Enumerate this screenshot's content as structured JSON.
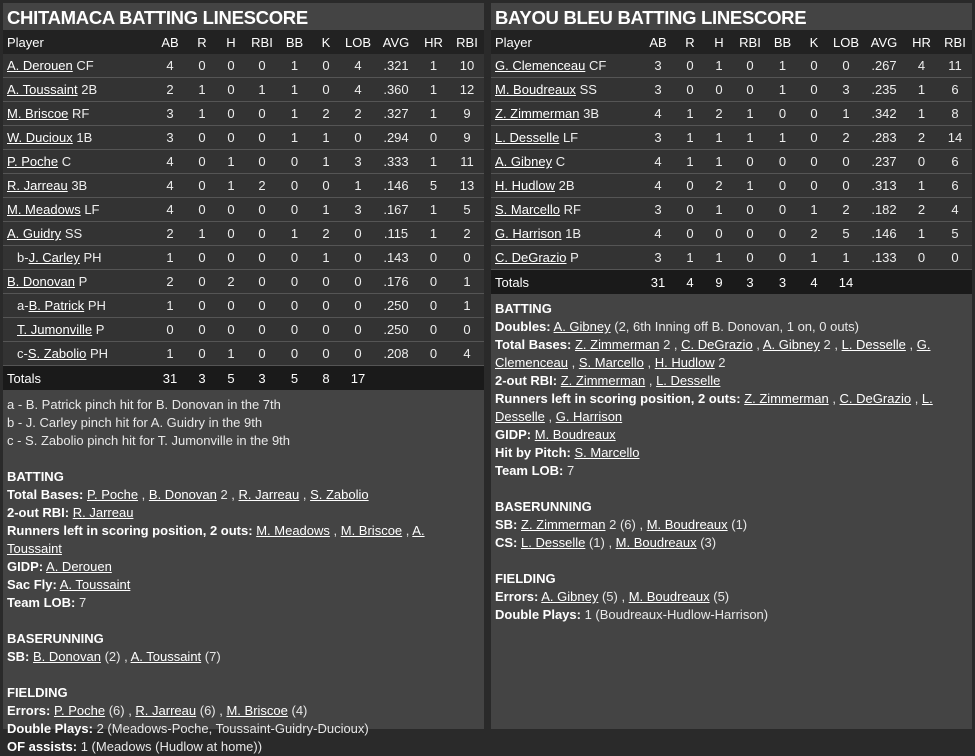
{
  "columns": [
    "Player",
    "AB",
    "R",
    "H",
    "RBI",
    "BB",
    "K",
    "LOB",
    "AVG",
    "HR",
    "RBI"
  ],
  "teams": [
    {
      "title": "CHITAMACA BATTING LINESCORE",
      "rows": [
        {
          "prefix": "",
          "name": "A. Derouen",
          "pos": "CF",
          "sub": false,
          "stats": [
            "4",
            "0",
            "0",
            "0",
            "1",
            "0",
            "4",
            ".321",
            "1",
            "10"
          ]
        },
        {
          "prefix": "",
          "name": "A. Toussaint",
          "pos": "2B",
          "sub": false,
          "stats": [
            "2",
            "1",
            "0",
            "1",
            "1",
            "0",
            "4",
            ".360",
            "1",
            "12"
          ]
        },
        {
          "prefix": "",
          "name": "M. Briscoe",
          "pos": "RF",
          "sub": false,
          "stats": [
            "3",
            "1",
            "0",
            "0",
            "1",
            "2",
            "2",
            ".327",
            "1",
            "9"
          ]
        },
        {
          "prefix": "",
          "name": "W. Ducioux",
          "pos": "1B",
          "sub": false,
          "stats": [
            "3",
            "0",
            "0",
            "0",
            "1",
            "1",
            "0",
            ".294",
            "0",
            "9"
          ]
        },
        {
          "prefix": "",
          "name": "P. Poche",
          "pos": "C",
          "sub": false,
          "stats": [
            "4",
            "0",
            "1",
            "0",
            "0",
            "1",
            "3",
            ".333",
            "1",
            "11"
          ]
        },
        {
          "prefix": "",
          "name": "R. Jarreau",
          "pos": "3B",
          "sub": false,
          "stats": [
            "4",
            "0",
            "1",
            "2",
            "0",
            "0",
            "1",
            ".146",
            "5",
            "13"
          ]
        },
        {
          "prefix": "",
          "name": "M. Meadows",
          "pos": "LF",
          "sub": false,
          "stats": [
            "4",
            "0",
            "0",
            "0",
            "0",
            "1",
            "3",
            ".167",
            "1",
            "5"
          ]
        },
        {
          "prefix": "",
          "name": "A. Guidry",
          "pos": "SS",
          "sub": false,
          "stats": [
            "2",
            "1",
            "0",
            "0",
            "1",
            "2",
            "0",
            ".115",
            "1",
            "2"
          ]
        },
        {
          "prefix": "b-",
          "name": "J. Carley",
          "pos": "PH",
          "sub": true,
          "stats": [
            "1",
            "0",
            "0",
            "0",
            "0",
            "1",
            "0",
            ".143",
            "0",
            "0"
          ]
        },
        {
          "prefix": "",
          "name": "B. Donovan",
          "pos": "P",
          "sub": false,
          "stats": [
            "2",
            "0",
            "2",
            "0",
            "0",
            "0",
            "0",
            ".176",
            "0",
            "1"
          ]
        },
        {
          "prefix": "a-",
          "name": "B. Patrick",
          "pos": "PH",
          "sub": true,
          "stats": [
            "1",
            "0",
            "0",
            "0",
            "0",
            "0",
            "0",
            ".250",
            "0",
            "1"
          ]
        },
        {
          "prefix": "",
          "name": "T. Jumonville",
          "pos": "P",
          "sub": true,
          "stats": [
            "0",
            "0",
            "0",
            "0",
            "0",
            "0",
            "0",
            ".250",
            "0",
            "0"
          ]
        },
        {
          "prefix": "c-",
          "name": "S. Zabolio",
          "pos": "PH",
          "sub": true,
          "stats": [
            "1",
            "0",
            "1",
            "0",
            "0",
            "0",
            "0",
            ".208",
            "0",
            "4"
          ]
        }
      ],
      "totals": {
        "label": "Totals",
        "stats": [
          "31",
          "3",
          "5",
          "3",
          "5",
          "8",
          "17",
          "",
          "",
          ""
        ]
      },
      "footnotes": [
        "a - B. Patrick pinch hit for B. Donovan in the 7th",
        "b - J. Carley pinch hit for A. Guidry in the 9th",
        "c - S. Zabolio pinch hit for T. Jumonville in the 9th"
      ],
      "sections": [
        {
          "heading": "BATTING",
          "items": [
            {
              "label": "Total Bases:",
              "parts": [
                {
                  "link": "P. Poche"
                },
                " , ",
                {
                  "link": "B. Donovan"
                },
                " 2 , ",
                {
                  "link": "R. Jarreau"
                },
                " , ",
                {
                  "link": "S. Zabolio"
                }
              ]
            },
            {
              "label": "2-out RBI:",
              "parts": [
                {
                  "link": "R. Jarreau"
                }
              ]
            },
            {
              "label": "Runners left in scoring position, 2 outs:",
              "parts": [
                {
                  "link": "M. Meadows"
                },
                " , ",
                {
                  "link": "M. Briscoe"
                },
                " , ",
                {
                  "link": "A. Toussaint"
                }
              ]
            },
            {
              "label": "GIDP:",
              "parts": [
                {
                  "link": "A. Derouen"
                }
              ]
            },
            {
              "label": "Sac Fly:",
              "parts": [
                {
                  "link": "A. Toussaint"
                }
              ]
            },
            {
              "label": "Team LOB:",
              "parts": [
                "7"
              ]
            }
          ]
        },
        {
          "heading": "BASERUNNING",
          "items": [
            {
              "label": "SB:",
              "parts": [
                {
                  "link": "B. Donovan"
                },
                " (2) , ",
                {
                  "link": "A. Toussaint"
                },
                " (7)"
              ]
            }
          ]
        },
        {
          "heading": "FIELDING",
          "items": [
            {
              "label": "Errors:",
              "parts": [
                {
                  "link": "P. Poche"
                },
                " (6) , ",
                {
                  "link": "R. Jarreau"
                },
                " (6) , ",
                {
                  "link": "M. Briscoe"
                },
                " (4)"
              ]
            },
            {
              "label": "Double Plays:",
              "parts": [
                "2 (Meadows-Poche, Toussaint-Guidry-Ducioux)"
              ]
            },
            {
              "label": "OF assists:",
              "parts": [
                "1 (Meadows (Hudlow at home))"
              ]
            }
          ]
        }
      ]
    },
    {
      "title": "BAYOU BLEU BATTING LINESCORE",
      "rows": [
        {
          "prefix": "",
          "name": "G. Clemenceau",
          "pos": "CF",
          "sub": false,
          "stats": [
            "3",
            "0",
            "1",
            "0",
            "1",
            "0",
            "0",
            ".267",
            "4",
            "11"
          ]
        },
        {
          "prefix": "",
          "name": "M. Boudreaux",
          "pos": "SS",
          "sub": false,
          "stats": [
            "3",
            "0",
            "0",
            "0",
            "1",
            "0",
            "3",
            ".235",
            "1",
            "6"
          ]
        },
        {
          "prefix": "",
          "name": "Z. Zimmerman",
          "pos": "3B",
          "sub": false,
          "stats": [
            "4",
            "1",
            "2",
            "1",
            "0",
            "0",
            "1",
            ".342",
            "1",
            "8"
          ]
        },
        {
          "prefix": "",
          "name": "L. Desselle",
          "pos": "LF",
          "sub": false,
          "stats": [
            "3",
            "1",
            "1",
            "1",
            "1",
            "0",
            "2",
            ".283",
            "2",
            "14"
          ]
        },
        {
          "prefix": "",
          "name": "A. Gibney",
          "pos": "C",
          "sub": false,
          "stats": [
            "4",
            "1",
            "1",
            "0",
            "0",
            "0",
            "0",
            ".237",
            "0",
            "6"
          ]
        },
        {
          "prefix": "",
          "name": "H. Hudlow",
          "pos": "2B",
          "sub": false,
          "stats": [
            "4",
            "0",
            "2",
            "1",
            "0",
            "0",
            "0",
            ".313",
            "1",
            "6"
          ]
        },
        {
          "prefix": "",
          "name": "S. Marcello",
          "pos": "RF",
          "sub": false,
          "stats": [
            "3",
            "0",
            "1",
            "0",
            "0",
            "1",
            "2",
            ".182",
            "2",
            "4"
          ]
        },
        {
          "prefix": "",
          "name": "G. Harrison",
          "pos": "1B",
          "sub": false,
          "stats": [
            "4",
            "0",
            "0",
            "0",
            "0",
            "2",
            "5",
            ".146",
            "1",
            "5"
          ]
        },
        {
          "prefix": "",
          "name": "C. DeGrazio",
          "pos": "P",
          "sub": false,
          "stats": [
            "3",
            "1",
            "1",
            "0",
            "0",
            "1",
            "1",
            ".133",
            "0",
            "0"
          ]
        }
      ],
      "totals": {
        "label": "Totals",
        "stats": [
          "31",
          "4",
          "9",
          "3",
          "3",
          "4",
          "14",
          "",
          "",
          ""
        ]
      },
      "footnotes": [],
      "sections": [
        {
          "heading": "BATTING",
          "items": [
            {
              "label": "Doubles:",
              "parts": [
                {
                  "link": "A. Gibney"
                },
                " (2, 6th Inning off B. Donovan, 1 on, 0 outs)"
              ]
            },
            {
              "label": "Total Bases:",
              "parts": [
                {
                  "link": "Z. Zimmerman"
                },
                " 2 , ",
                {
                  "link": "C. DeGrazio"
                },
                " , ",
                {
                  "link": "A. Gibney"
                },
                " 2 , ",
                {
                  "link": "L. Desselle"
                },
                " , ",
                {
                  "link": "G. Clemenceau"
                },
                " , ",
                {
                  "link": "S. Marcello"
                },
                " , ",
                {
                  "link": "H. Hudlow"
                },
                " 2"
              ]
            },
            {
              "label": "2-out RBI:",
              "parts": [
                {
                  "link": "Z. Zimmerman"
                },
                " , ",
                {
                  "link": "L. Desselle"
                }
              ]
            },
            {
              "label": "Runners left in scoring position, 2 outs:",
              "parts": [
                {
                  "link": "Z. Zimmerman"
                },
                " , ",
                {
                  "link": "C. DeGrazio"
                },
                " , ",
                {
                  "link": "L. Desselle"
                },
                " , ",
                {
                  "link": "G. Harrison"
                }
              ]
            },
            {
              "label": "GIDP:",
              "parts": [
                {
                  "link": "M. Boudreaux"
                }
              ]
            },
            {
              "label": "Hit by Pitch:",
              "parts": [
                {
                  "link": "S. Marcello"
                }
              ]
            },
            {
              "label": "Team LOB:",
              "parts": [
                "7"
              ]
            }
          ]
        },
        {
          "heading": "BASERUNNING",
          "items": [
            {
              "label": "SB:",
              "parts": [
                {
                  "link": "Z. Zimmerman"
                },
                " 2 (6) , ",
                {
                  "link": "M. Boudreaux"
                },
                " (1)"
              ]
            },
            {
              "label": "CS:",
              "parts": [
                {
                  "link": "L. Desselle"
                },
                " (1) , ",
                {
                  "link": "M. Boudreaux"
                },
                " (3)"
              ]
            }
          ]
        },
        {
          "heading": "FIELDING",
          "items": [
            {
              "label": "Errors:",
              "parts": [
                {
                  "link": "A. Gibney"
                },
                " (5) , ",
                {
                  "link": "M. Boudreaux"
                },
                " (5)"
              ]
            },
            {
              "label": "Double Plays:",
              "parts": [
                "1 (Boudreaux-Hudlow-Harrison)"
              ]
            }
          ]
        }
      ]
    }
  ]
}
